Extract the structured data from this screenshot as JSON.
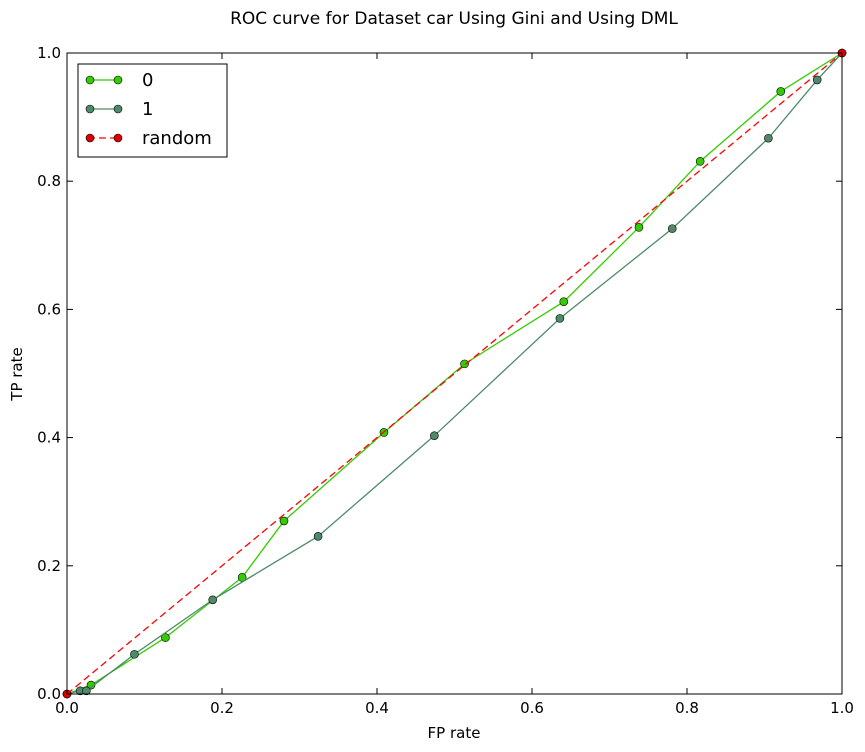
{
  "chart_data": {
    "type": "line",
    "title": "ROC curve for Dataset car Using Gini and Using DML",
    "xlabel": "FP rate",
    "ylabel": "TP rate",
    "xlim": [
      0.0,
      1.0
    ],
    "ylim": [
      0.0,
      1.0
    ],
    "xticks": [
      "0.0",
      "0.2",
      "0.4",
      "0.6",
      "0.8",
      "1.0"
    ],
    "yticks": [
      "0.0",
      "0.2",
      "0.4",
      "0.6",
      "0.8",
      "1.0"
    ],
    "grid": false,
    "legend_position": "top-left",
    "series": [
      {
        "name": "0",
        "color": "#33cc00",
        "marker_color": "#33cc00",
        "line_style": "solid",
        "x": [
          0.0,
          0.031,
          0.127,
          0.226,
          0.28,
          0.409,
          0.513,
          0.641,
          0.738,
          0.817,
          0.921,
          1.0
        ],
        "y": [
          0.0,
          0.014,
          0.088,
          0.182,
          0.27,
          0.408,
          0.515,
          0.612,
          0.728,
          0.831,
          0.94,
          1.0
        ]
      },
      {
        "name": "1",
        "color": "#4e8a6a",
        "marker_color": "#4e8a6a",
        "line_style": "solid",
        "x": [
          0.0,
          0.017,
          0.025,
          0.087,
          0.188,
          0.324,
          0.474,
          0.636,
          0.781,
          0.905,
          0.968,
          1.0
        ],
        "y": [
          0.0,
          0.005,
          0.005,
          0.062,
          0.147,
          0.246,
          0.403,
          0.586,
          0.726,
          0.867,
          0.958,
          1.0
        ]
      },
      {
        "name": "random",
        "color": "#ff0000",
        "marker_color": "#dd0000",
        "line_style": "dashed",
        "x": [
          0.0,
          1.0
        ],
        "y": [
          0.0,
          1.0
        ]
      }
    ]
  }
}
